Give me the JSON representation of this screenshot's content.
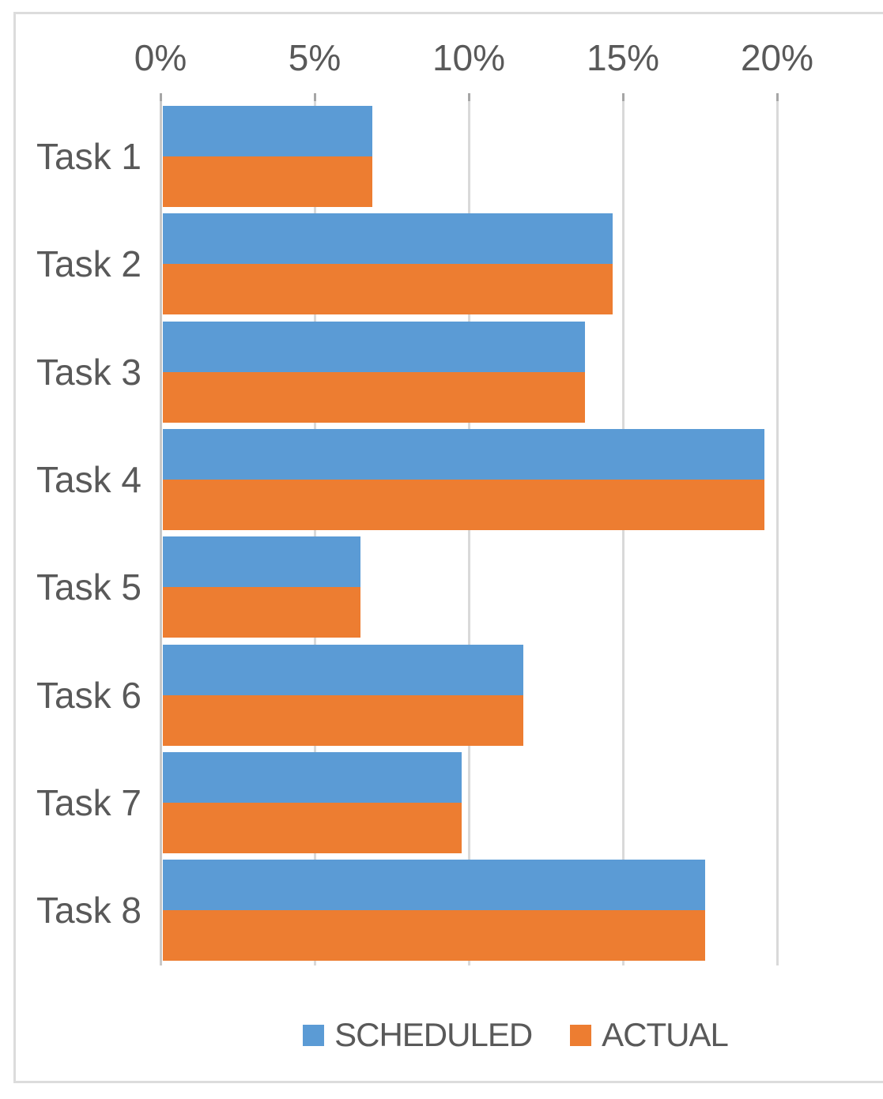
{
  "chart_data": {
    "type": "bar",
    "orientation": "horizontal",
    "title": "",
    "categories": [
      "Task 1",
      "Task 2",
      "Task 3",
      "Task 4",
      "Task 5",
      "Task 6",
      "Task 7",
      "Task 8"
    ],
    "series": [
      {
        "name": "SCHEDULED",
        "color": "#5b9bd5",
        "values": [
          6.8,
          14.6,
          13.7,
          19.5,
          6.4,
          11.7,
          9.7,
          17.6
        ]
      },
      {
        "name": "ACTUAL",
        "color": "#ed7d31",
        "values": [
          6.8,
          14.6,
          13.7,
          19.5,
          6.4,
          11.7,
          9.7,
          17.6
        ]
      }
    ],
    "x_axis": {
      "position": "top",
      "unit": "%",
      "tick_labels": [
        "0%",
        "5%",
        "10%",
        "15%",
        "20%"
      ],
      "tick_values": [
        0,
        5,
        10,
        15,
        20
      ],
      "range": [
        0,
        23
      ]
    },
    "legend": {
      "position": "bottom",
      "entries": [
        "SCHEDULED",
        "ACTUAL"
      ]
    },
    "grid": true
  },
  "colors": {
    "scheduled": "#5b9bd5",
    "actual": "#ed7d31",
    "text": "#595959",
    "gridline": "#d9d9d9",
    "axis_line": "#c9c9c9",
    "tick": "#a6a6a6",
    "border": "#dcdcdc",
    "background": "#ffffff"
  }
}
